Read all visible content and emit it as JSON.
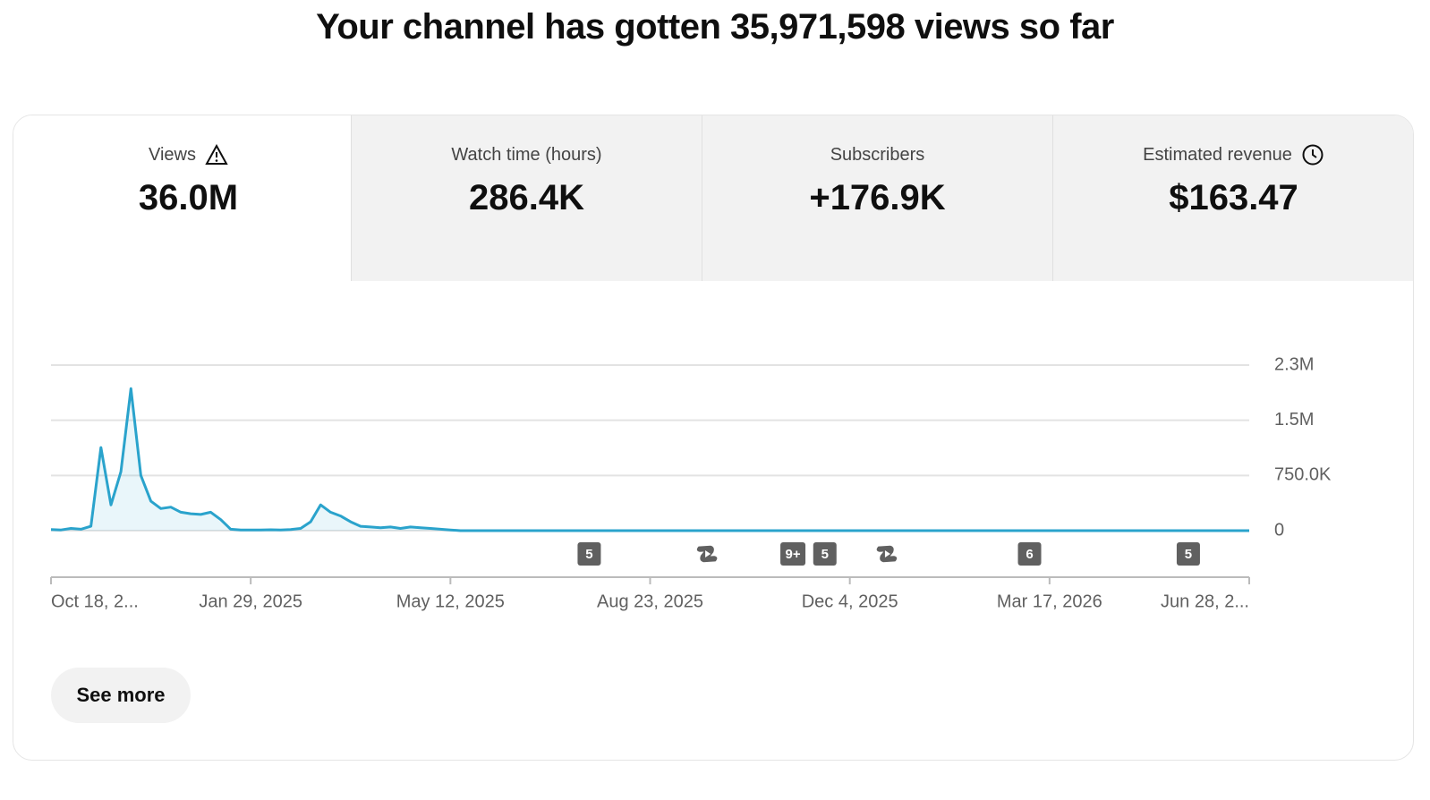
{
  "header": {
    "title": "Your channel has gotten 35,971,598 views so far"
  },
  "tabs": [
    {
      "label": "Views",
      "value": "36.0M",
      "icon": "warning"
    },
    {
      "label": "Watch time (hours)",
      "value": "286.4K"
    },
    {
      "label": "Subscribers",
      "value": "+176.9K"
    },
    {
      "label": "Estimated revenue",
      "value": "$163.47",
      "icon": "clock"
    }
  ],
  "chart_data": {
    "type": "area",
    "color": "#2aa3cc",
    "grid": true,
    "values": [
      15000,
      10000,
      30000,
      20000,
      60000,
      1130000,
      350000,
      800000,
      1930000,
      750000,
      400000,
      300000,
      320000,
      250000,
      230000,
      220000,
      250000,
      150000,
      20000,
      10000,
      10000,
      8000,
      12000,
      10000,
      15000,
      30000,
      120000,
      350000,
      250000,
      200000,
      120000,
      60000,
      50000,
      40000,
      50000,
      30000,
      50000,
      40000,
      30000,
      20000,
      10000,
      0,
      0,
      0,
      0,
      0,
      0,
      0,
      0,
      0,
      0,
      0,
      0,
      0,
      0,
      0,
      0,
      0,
      0,
      0,
      0,
      0,
      0,
      0,
      0,
      0,
      0,
      0,
      0,
      0,
      0,
      0,
      0,
      0,
      0,
      0,
      0,
      0,
      0,
      0,
      0,
      0,
      0,
      0,
      0,
      0,
      0,
      0,
      0,
      0,
      0,
      0,
      0,
      0,
      0,
      0,
      0,
      0,
      0,
      0,
      0,
      0,
      0,
      0,
      0,
      0,
      0,
      0,
      0,
      0,
      0,
      0,
      0,
      0,
      0,
      0,
      0,
      0,
      0,
      0,
      0
    ],
    "xlim": [
      0,
      120
    ],
    "xticks": [
      {
        "value": 0,
        "label": "Oct 18, 2..."
      },
      {
        "value": 20,
        "label": "Jan 29, 2025"
      },
      {
        "value": 40,
        "label": "May 12, 2025"
      },
      {
        "value": 60,
        "label": "Aug 23, 2025"
      },
      {
        "value": 80,
        "label": "Dec 4, 2025"
      },
      {
        "value": 100,
        "label": "Mar 17, 2026"
      },
      {
        "value": 120,
        "label": "Jun 28, 2..."
      }
    ],
    "ylim": [
      0,
      2250000
    ],
    "yticks": [
      0,
      {
        "value": 750000,
        "label": "750.0K"
      },
      {
        "value": 1500000,
        "label": "1.5M"
      },
      {
        "value": 2250000,
        "label": "2.3M"
      }
    ],
    "markers": [
      {
        "x": 53.9,
        "label": "5"
      },
      {
        "x": 65.7,
        "icon": "shorts"
      },
      {
        "x": 74.3,
        "label": "9+"
      },
      {
        "x": 77.5,
        "label": "5"
      },
      {
        "x": 83.7,
        "icon": "shorts"
      },
      {
        "x": 98,
        "label": "6"
      },
      {
        "x": 113.9,
        "label": "5"
      }
    ]
  },
  "button": {
    "label": "See more"
  }
}
